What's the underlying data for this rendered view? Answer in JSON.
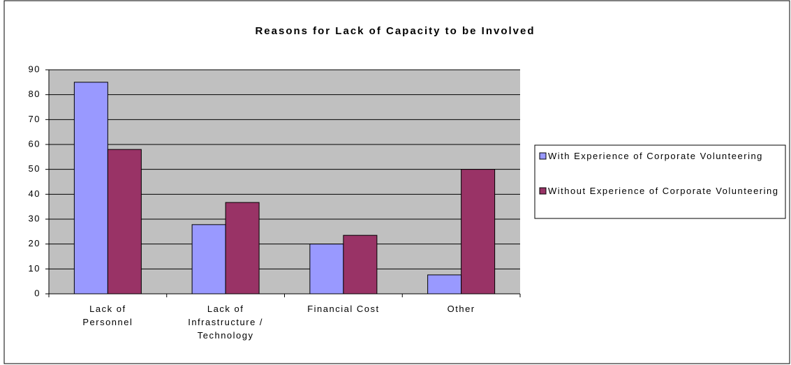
{
  "chart_data": {
    "type": "bar",
    "title": "Reasons for Lack of Capacity to be Involved",
    "categories": [
      "Lack of Personnel",
      "Lack of Infrastructure / Technology",
      "Financial Cost",
      "Other"
    ],
    "series": [
      {
        "name": "With Experience of Corporate Volunteering",
        "color": "#9999ff",
        "values": [
          85,
          27.8,
          20,
          7.6
        ]
      },
      {
        "name": "Without Experience of Corporate Volunteering",
        "color": "#993366",
        "values": [
          58,
          36.7,
          23.5,
          50
        ]
      }
    ],
    "ylim": [
      0,
      90
    ],
    "yticks": [
      0,
      10,
      20,
      30,
      40,
      50,
      60,
      70,
      80,
      90
    ],
    "grid": true,
    "legend": "right"
  }
}
